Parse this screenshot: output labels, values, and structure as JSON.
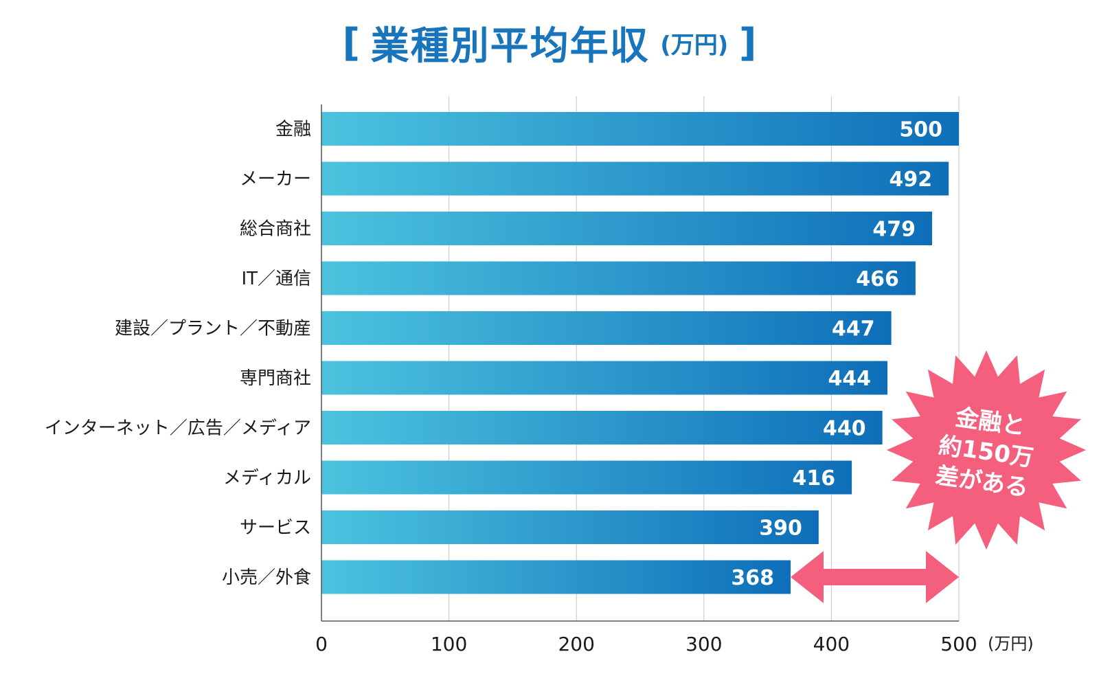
{
  "title": {
    "bracket_open": "[",
    "main": "業種別平均年収",
    "unit": "(万円)",
    "bracket_close": "]",
    "color": "#1874bb"
  },
  "chart_data": {
    "type": "bar",
    "orientation": "horizontal",
    "title": "業種別平均年収(万円)",
    "categories": [
      "金融",
      "メーカー",
      "総合商社",
      "IT／通信",
      "建設／プラント／不動産",
      "専門商社",
      "インターネット／広告／メディア",
      "メディカル",
      "サービス",
      "小売／外食"
    ],
    "values": [
      500,
      492,
      479,
      466,
      447,
      444,
      440,
      416,
      390,
      368
    ],
    "xlim": [
      0,
      500
    ],
    "xticks": [
      0,
      100,
      200,
      300,
      400,
      500
    ],
    "x_unit_label": "(万円)",
    "grid": true,
    "data_labels": true,
    "bar_gradient": [
      "#4cc3df",
      "#0e6eb8"
    ],
    "annotation": {
      "text_lines": [
        "金融と",
        "約150万",
        "差がある"
      ],
      "arrow_from": 368,
      "arrow_to": 500,
      "color": "#f45f7d"
    }
  }
}
